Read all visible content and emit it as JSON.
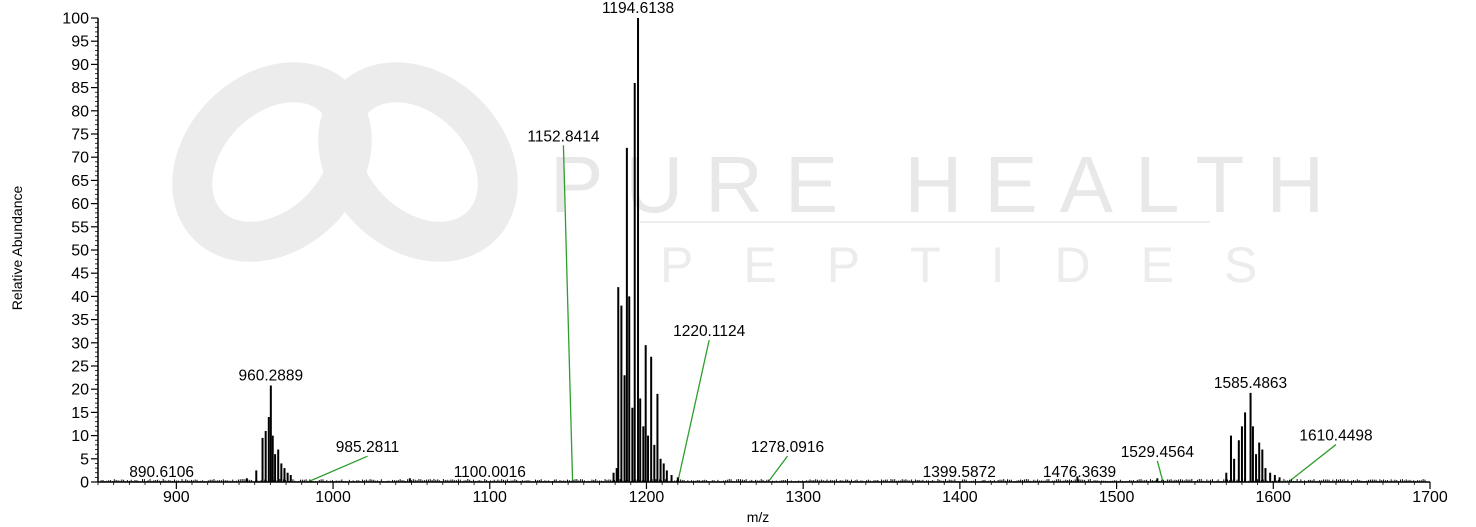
{
  "watermark": {
    "line1": "PURE HEALTH",
    "line2": "PEPTIDES",
    "color": "#e6e6e6"
  },
  "header_fragment": "1194.6138",
  "chart_data": {
    "type": "line",
    "title": "",
    "xlabel": "m/z",
    "ylabel": "Relative Abundance",
    "xlim": [
      850,
      1700
    ],
    "ylim": [
      0,
      100
    ],
    "x_ticks": [
      900,
      1000,
      1100,
      1200,
      1300,
      1400,
      1500,
      1600,
      1700
    ],
    "y_ticks": [
      0,
      5,
      10,
      15,
      20,
      25,
      30,
      35,
      40,
      45,
      50,
      55,
      60,
      65,
      70,
      75,
      80,
      85,
      90,
      95,
      100
    ],
    "grid": false,
    "colors": {
      "spectrum": "#000000",
      "leader": "#2e9e2e",
      "axis": "#000000"
    },
    "peaks": [
      {
        "x": 945,
        "y": 0.8
      },
      {
        "x": 951,
        "y": 2.5
      },
      {
        "x": 955,
        "y": 9.5
      },
      {
        "x": 957,
        "y": 11
      },
      {
        "x": 959,
        "y": 14
      },
      {
        "x": 960.2889,
        "y": 20.8
      },
      {
        "x": 961.5,
        "y": 10
      },
      {
        "x": 963,
        "y": 6
      },
      {
        "x": 965,
        "y": 7
      },
      {
        "x": 967,
        "y": 4
      },
      {
        "x": 969,
        "y": 3
      },
      {
        "x": 971,
        "y": 2
      },
      {
        "x": 973,
        "y": 1.5
      },
      {
        "x": 1179,
        "y": 2
      },
      {
        "x": 1181,
        "y": 3
      },
      {
        "x": 1182,
        "y": 42
      },
      {
        "x": 1184,
        "y": 38
      },
      {
        "x": 1186,
        "y": 23
      },
      {
        "x": 1187.5,
        "y": 72
      },
      {
        "x": 1189,
        "y": 40
      },
      {
        "x": 1191,
        "y": 16
      },
      {
        "x": 1192.5,
        "y": 86
      },
      {
        "x": 1194.6138,
        "y": 100
      },
      {
        "x": 1196,
        "y": 18
      },
      {
        "x": 1198,
        "y": 12
      },
      {
        "x": 1199.5,
        "y": 29.5
      },
      {
        "x": 1201,
        "y": 10
      },
      {
        "x": 1203,
        "y": 27
      },
      {
        "x": 1205,
        "y": 8
      },
      {
        "x": 1207,
        "y": 19
      },
      {
        "x": 1209,
        "y": 5
      },
      {
        "x": 1211,
        "y": 4
      },
      {
        "x": 1213,
        "y": 2.5
      },
      {
        "x": 1216,
        "y": 1.5
      },
      {
        "x": 1220,
        "y": 1
      },
      {
        "x": 1570,
        "y": 2
      },
      {
        "x": 1573,
        "y": 10
      },
      {
        "x": 1575,
        "y": 5
      },
      {
        "x": 1578,
        "y": 9
      },
      {
        "x": 1580,
        "y": 12
      },
      {
        "x": 1582,
        "y": 15
      },
      {
        "x": 1585.4863,
        "y": 19.2
      },
      {
        "x": 1587,
        "y": 12
      },
      {
        "x": 1589,
        "y": 6
      },
      {
        "x": 1591,
        "y": 8.5
      },
      {
        "x": 1593,
        "y": 7
      },
      {
        "x": 1595,
        "y": 3
      },
      {
        "x": 1598,
        "y": 2
      },
      {
        "x": 1601,
        "y": 1.5
      },
      {
        "x": 1604,
        "y": 1
      },
      {
        "x": 1475,
        "y": 1.2
      },
      {
        "x": 1526,
        "y": 0.8
      },
      {
        "x": 1049,
        "y": 0.8
      }
    ],
    "annotations": [
      {
        "label": "1194.6138",
        "x": 1194.6138,
        "y": 100,
        "leader": false
      },
      {
        "label": "1152.8414",
        "x": 1152.8414,
        "y": 0,
        "leader": true,
        "label_x": 1147,
        "label_y": 73
      },
      {
        "label": "1220.1124",
        "x": 1220.1124,
        "y": 0,
        "leader": true,
        "label_x": 1240,
        "label_y": 31
      },
      {
        "label": "960.2889",
        "x": 960.2889,
        "y": 20.8,
        "leader": false
      },
      {
        "label": "985.2811",
        "x": 985.2811,
        "y": 0,
        "leader": true,
        "label_x": 1022,
        "label_y": 6
      },
      {
        "label": "890.6106",
        "x": 890.6106,
        "y": 0,
        "leader": false
      },
      {
        "label": "1100.0016",
        "x": 1100.0016,
        "y": 0,
        "leader": false
      },
      {
        "label": "1278.0916",
        "x": 1278.0916,
        "y": 0,
        "leader": true,
        "label_x": 1290,
        "label_y": 6
      },
      {
        "label": "1399.5872",
        "x": 1399.5872,
        "y": 0,
        "leader": false
      },
      {
        "label": "1476.3639",
        "x": 1476.3639,
        "y": 0,
        "leader": false
      },
      {
        "label": "1529.4564",
        "x": 1529.4564,
        "y": 0,
        "leader": true,
        "label_x": 1526,
        "label_y": 5
      },
      {
        "label": "1585.4863",
        "x": 1585.4863,
        "y": 19.2,
        "leader": false
      },
      {
        "label": "1610.4498",
        "x": 1610.4498,
        "y": 0,
        "leader": true,
        "label_x": 1640,
        "label_y": 8.5
      }
    ]
  }
}
